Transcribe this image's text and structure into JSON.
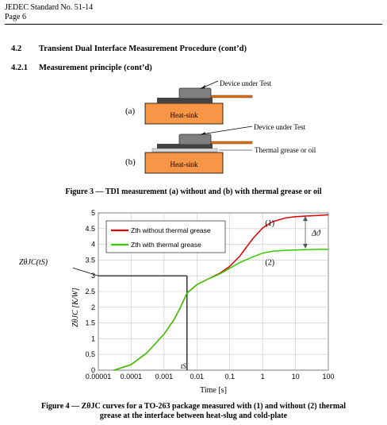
{
  "header": {
    "standard": "JEDEC Standard No. 51-14",
    "page": "Page 6"
  },
  "section": {
    "number": "4.2",
    "title": "Transient Dual Interface Measurement Procedure (cont’d)"
  },
  "subsection": {
    "number": "4.2.1",
    "title": "Measurement principle (cont’d)"
  },
  "figure3": {
    "label_a": "(a)",
    "label_b": "(b)",
    "dut_a": "Device under Test",
    "dut_b": "Device under Test",
    "grease": "Thermal grease or oil",
    "heatsink_a": "Heat-sink",
    "heatsink_b": "Heat-sink",
    "caption": "Figure 3 — TDI measurement (a) without and (b) with thermal grease or oil",
    "colors": {
      "heatsink": "#f79646",
      "device": "#7f7f7f",
      "lead": "#e46c0a"
    }
  },
  "figure4": {
    "caption_line1": "Figure 4 — ZθJC curves for a TO-263 package measured with (1) and without (2) thermal",
    "caption_line2": "grease at the interface between heat-slug and cold-plate"
  },
  "chart_data": {
    "type": "line",
    "xscale": "log",
    "xlim": [
      1e-05,
      100
    ],
    "ylim": [
      0,
      5
    ],
    "xticks": [
      "0.00001",
      "0.0001",
      "0.001",
      "0.01",
      "0.1",
      "1",
      "10",
      "100"
    ],
    "yticks": [
      "0",
      "0.5",
      "1",
      "1.5",
      "2",
      "2.5",
      "3",
      "3.5",
      "4",
      "4.5",
      "5"
    ],
    "xlabel": "Time  [s]",
    "ylabel": "ZθJC [K/W]",
    "grid": true,
    "legend_position": "top-left",
    "series": [
      {
        "name": "Zth without thermal grease",
        "color": "#e00000",
        "x": [
          3e-05,
          0.0001,
          0.0003,
          0.001,
          0.002,
          0.003,
          0.005,
          0.01,
          0.02,
          0.05,
          0.1,
          0.2,
          0.5,
          1,
          2,
          5,
          10,
          20,
          50,
          100
        ],
        "y": [
          0,
          0.18,
          0.55,
          1.15,
          1.6,
          1.95,
          2.45,
          2.72,
          2.88,
          3.08,
          3.3,
          3.62,
          4.18,
          4.52,
          4.72,
          4.84,
          4.88,
          4.9,
          4.92,
          4.94
        ]
      },
      {
        "name": "Zth with thermal grease",
        "color": "#33cc00",
        "x": [
          3e-05,
          0.0001,
          0.0003,
          0.001,
          0.002,
          0.003,
          0.005,
          0.01,
          0.02,
          0.05,
          0.1,
          0.2,
          0.5,
          1,
          2,
          5,
          10,
          20,
          50,
          100
        ],
        "y": [
          0,
          0.18,
          0.55,
          1.15,
          1.6,
          1.95,
          2.45,
          2.72,
          2.88,
          3.06,
          3.24,
          3.42,
          3.6,
          3.72,
          3.78,
          3.81,
          3.82,
          3.83,
          3.84,
          3.84
        ]
      }
    ],
    "annotations": {
      "label_1": "(1)",
      "label_2": "(2)",
      "delta": "Δϑ",
      "z_label": "ZθJC(tS)",
      "ts_label": "tS",
      "ts_value": 0.005,
      "z_value": 3.0
    }
  }
}
